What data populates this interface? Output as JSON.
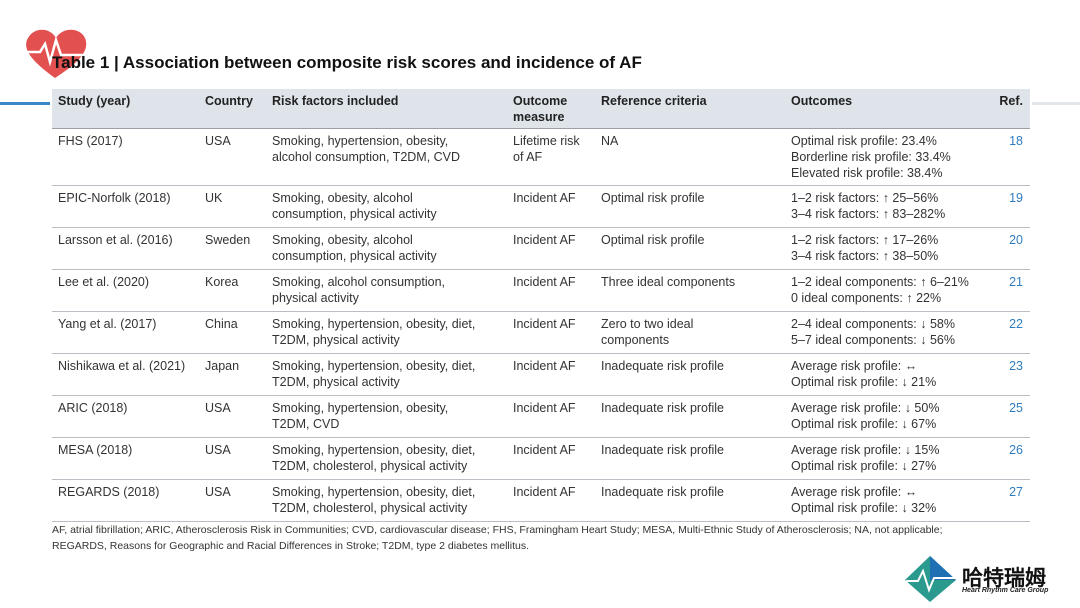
{
  "title": "Table 1 | Association between composite risk scores and incidence of AF",
  "table": {
    "header": [
      [
        "Study (year)"
      ],
      [
        "Country"
      ],
      [
        "Risk factors included"
      ],
      [
        "Outcome",
        "measure"
      ],
      [
        "Reference criteria"
      ],
      [
        "Outcomes"
      ],
      [
        "Ref."
      ]
    ],
    "rows": [
      [
        [
          "FHS (2017)"
        ],
        [
          "USA"
        ],
        [
          "Smoking, hypertension, obesity,",
          "alcohol consumption, T2DM, CVD"
        ],
        [
          "Lifetime risk",
          "of AF"
        ],
        [
          "NA"
        ],
        [
          "Optimal risk profile: 23.4%",
          "Borderline risk profile: 33.4%",
          "Elevated risk profile: 38.4%"
        ],
        [
          "18"
        ]
      ],
      [
        [
          "EPIC-Norfolk (2018)"
        ],
        [
          "UK"
        ],
        [
          "Smoking, obesity, alcohol",
          "consumption, physical activity"
        ],
        [
          "Incident AF"
        ],
        [
          "Optimal risk profile"
        ],
        [
          "1–2 risk factors: ↑ 25–56%",
          "3–4 risk factors: ↑ 83–282%"
        ],
        [
          "19"
        ]
      ],
      [
        [
          "Larsson et al. (2016)"
        ],
        [
          "Sweden"
        ],
        [
          "Smoking, obesity, alcohol",
          "consumption, physical activity"
        ],
        [
          "Incident AF"
        ],
        [
          "Optimal risk profile"
        ],
        [
          "1–2 risk factors: ↑ 17–26%",
          "3–4 risk factors: ↑ 38–50%"
        ],
        [
          "20"
        ]
      ],
      [
        [
          "Lee et al. (2020)"
        ],
        [
          "Korea"
        ],
        [
          "Smoking, alcohol consumption,",
          "physical activity"
        ],
        [
          "Incident AF"
        ],
        [
          "Three ideal components"
        ],
        [
          "1–2 ideal components: ↑ 6–21%",
          "0 ideal components: ↑ 22%"
        ],
        [
          "21"
        ]
      ],
      [
        [
          "Yang et al. (2017)"
        ],
        [
          "China"
        ],
        [
          "Smoking, hypertension, obesity, diet,",
          "T2DM, physical activity"
        ],
        [
          "Incident AF"
        ],
        [
          "Zero to two ideal",
          "components"
        ],
        [
          "2–4 ideal components: ↓ 58%",
          "5–7 ideal components: ↓ 56%"
        ],
        [
          "22"
        ]
      ],
      [
        [
          "Nishikawa et al. (2021)"
        ],
        [
          "Japan"
        ],
        [
          "Smoking, hypertension, obesity, diet,",
          "T2DM, physical activity"
        ],
        [
          "Incident AF"
        ],
        [
          "Inadequate risk profile"
        ],
        [
          "Average risk profile: ↔",
          "Optimal risk profile: ↓ 21%"
        ],
        [
          "23"
        ]
      ],
      [
        [
          "ARIC (2018)"
        ],
        [
          "USA"
        ],
        [
          "Smoking, hypertension, obesity,",
          "T2DM, CVD"
        ],
        [
          "Incident AF"
        ],
        [
          "Inadequate risk profile"
        ],
        [
          "Average risk profile: ↓ 50%",
          "Optimal risk profile: ↓ 67%"
        ],
        [
          "25"
        ]
      ],
      [
        [
          "MESA (2018)"
        ],
        [
          "USA"
        ],
        [
          "Smoking, hypertension, obesity, diet,",
          "T2DM, cholesterol, physical activity"
        ],
        [
          "Incident AF"
        ],
        [
          "Inadequate risk profile"
        ],
        [
          "Average risk profile: ↓ 15%",
          "Optimal risk profile: ↓ 27%"
        ],
        [
          "26"
        ]
      ],
      [
        [
          "REGARDS (2018)"
        ],
        [
          "USA"
        ],
        [
          "Smoking, hypertension, obesity, diet,",
          "T2DM, cholesterol, physical activity"
        ],
        [
          "Incident AF"
        ],
        [
          "Inadequate risk profile"
        ],
        [
          "Average risk profile: ↔",
          "Optimal risk profile: ↓ 32%"
        ],
        [
          "27"
        ]
      ]
    ]
  },
  "footnote": [
    "AF, atrial fibrillation; ARIC, Atherosclerosis Risk in Communities; CVD, cardiovascular disease; FHS, Framingham Heart Study; MESA, Multi-Ethnic Study of Atherosclerosis; NA, not applicable;",
    "REGARDS, Reasons for Geographic and Racial Differences in Stroke; T2DM, type 2 diabetes mellitus."
  ],
  "logo": {
    "name": "哈特瑞姆",
    "subtitle": "Heart Rhythm Care Group"
  }
}
